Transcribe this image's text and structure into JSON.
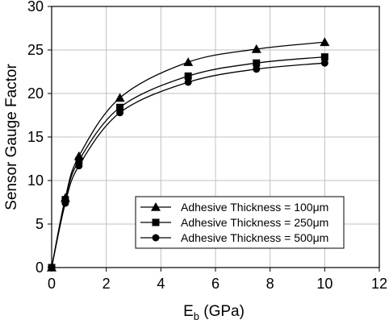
{
  "chart_data": {
    "type": "line",
    "title": "",
    "xlabel": {
      "main": "E",
      "sub": "b",
      "unit": " (GPa)"
    },
    "ylabel": "Sensor Gauge Factor",
    "xlim": [
      0,
      12
    ],
    "ylim": [
      0,
      30
    ],
    "x_ticks": [
      "0",
      "2",
      "4",
      "6",
      "8",
      "10",
      "12"
    ],
    "y_ticks": [
      "0",
      "5",
      "10",
      "15",
      "20",
      "25",
      "30"
    ],
    "grid": true,
    "legend_position": "bottom-right",
    "series": [
      {
        "name": "Adhesive Thickness = 100μm",
        "marker": "triangle",
        "x": [
          0,
          0.5,
          1,
          2.5,
          5,
          7.5,
          10
        ],
        "values": [
          0,
          8.0,
          12.8,
          19.5,
          23.6,
          25.1,
          25.9
        ]
      },
      {
        "name": "Adhesive Thickness = 250μm",
        "marker": "square",
        "x": [
          0,
          0.5,
          1,
          2.5,
          5,
          7.5,
          10
        ],
        "values": [
          0,
          7.8,
          12.3,
          18.4,
          22.0,
          23.5,
          24.2
        ]
      },
      {
        "name": "Adhesive Thickness = 500μm",
        "marker": "circle",
        "x": [
          0,
          0.5,
          1,
          2.5,
          5,
          7.5,
          10
        ],
        "values": [
          0,
          7.4,
          11.7,
          17.8,
          21.3,
          22.8,
          23.5
        ]
      }
    ],
    "colors": {
      "line": "#000000",
      "grid": "#c0c0c0",
      "frame": "#000000"
    }
  }
}
